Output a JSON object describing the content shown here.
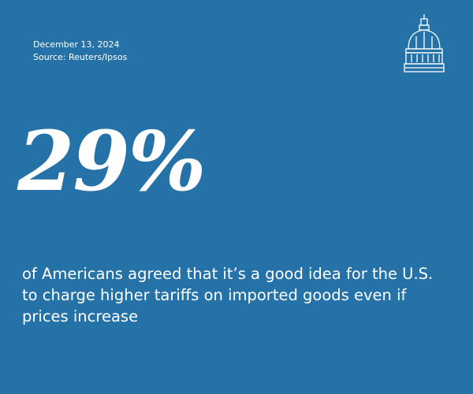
{
  "header": {
    "date": "December 13, 2024",
    "source": "Source: Reuters/Ipsos"
  },
  "stat": {
    "value": "29%",
    "description": "of Americans agreed that it’s a good idea for the U.S. to charge higher tariffs on imported goods even if prices increase"
  }
}
